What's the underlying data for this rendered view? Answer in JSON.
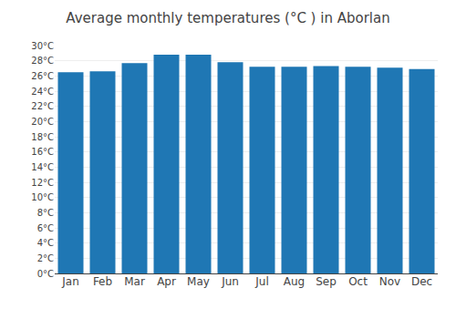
{
  "chart_data": {
    "type": "bar",
    "title": "Average monthly temperatures (°C ) in Aborlan",
    "categories": [
      "Jan",
      "Feb",
      "Mar",
      "Apr",
      "May",
      "Jun",
      "Jul",
      "Aug",
      "Sep",
      "Oct",
      "Nov",
      "Dec"
    ],
    "values": [
      26.5,
      26.6,
      27.7,
      28.8,
      28.8,
      27.8,
      27.2,
      27.2,
      27.3,
      27.2,
      27.1,
      26.9
    ],
    "ylim": [
      0,
      30
    ],
    "yticks": [
      {
        "value": 0,
        "label": "0°C"
      },
      {
        "value": 2,
        "label": "2°C"
      },
      {
        "value": 4,
        "label": "4°C"
      },
      {
        "value": 6,
        "label": "6°C"
      },
      {
        "value": 8,
        "label": "8°C"
      },
      {
        "value": 10,
        "label": "10°C"
      },
      {
        "value": 12,
        "label": "12°C"
      },
      {
        "value": 14,
        "label": "14°C"
      },
      {
        "value": 16,
        "label": "16°C"
      },
      {
        "value": 18,
        "label": "18°C"
      },
      {
        "value": 20,
        "label": "20°C"
      },
      {
        "value": 22,
        "label": "22°C"
      },
      {
        "value": 24,
        "label": "24°C"
      },
      {
        "value": 26,
        "label": "26°C"
      },
      {
        "value": 28,
        "label": "28°C"
      },
      {
        "value": 30,
        "label": "30°C"
      }
    ],
    "grid": true
  }
}
